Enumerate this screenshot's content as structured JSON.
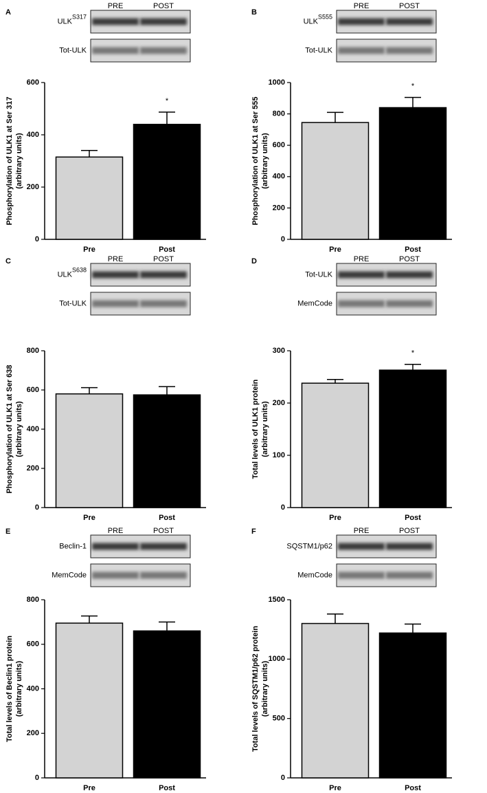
{
  "chart_data": [
    {
      "type": "bar",
      "panel": "A",
      "blot": {
        "lanes": [
          "PRE",
          "POST"
        ],
        "rows": [
          {
            "label": "ULK",
            "superscript": "S317"
          },
          {
            "label": "Tot-ULK"
          }
        ]
      },
      "ylabel": [
        "Phosphorylation of ULK1 at Ser 317",
        "(arbitrary units)"
      ],
      "categories": [
        "Pre",
        "Post"
      ],
      "values": [
        315,
        440
      ],
      "errors": [
        25,
        47
      ],
      "colors": [
        "#d3d3d3",
        "#000000"
      ],
      "ylim": [
        0,
        600
      ],
      "yticks": [
        0,
        200,
        400,
        600
      ],
      "annotations": [
        {
          "text": "*",
          "category": "Post"
        }
      ]
    },
    {
      "type": "bar",
      "panel": "B",
      "blot": {
        "lanes": [
          "PRE",
          "POST"
        ],
        "rows": [
          {
            "label": "ULK",
            "superscript": "S555"
          },
          {
            "label": "Tot-ULK"
          }
        ]
      },
      "ylabel": [
        "Phosphorylation of ULK1 at Ser 555",
        "(arbitrary units)"
      ],
      "categories": [
        "Pre",
        "Post"
      ],
      "values": [
        745,
        840
      ],
      "errors": [
        65,
        65
      ],
      "colors": [
        "#d3d3d3",
        "#000000"
      ],
      "ylim": [
        0,
        1000
      ],
      "yticks": [
        0,
        200,
        400,
        600,
        800,
        1000
      ],
      "annotations": [
        {
          "text": "*",
          "category": "Post"
        }
      ]
    },
    {
      "type": "bar",
      "panel": "C",
      "blot": {
        "lanes": [
          "PRE",
          "POST"
        ],
        "rows": [
          {
            "label": "ULK",
            "superscript": "S638"
          },
          {
            "label": "Tot-ULK"
          }
        ]
      },
      "ylabel": [
        "Phosphorylation of ULK1 at Ser 638",
        "(arbitrary units)"
      ],
      "categories": [
        "Pre",
        "Post"
      ],
      "values": [
        580,
        575
      ],
      "errors": [
        32,
        42
      ],
      "colors": [
        "#d3d3d3",
        "#000000"
      ],
      "ylim": [
        0,
        800
      ],
      "yticks": [
        0,
        200,
        400,
        600,
        800
      ]
    },
    {
      "type": "bar",
      "panel": "D",
      "blot": {
        "lanes": [
          "PRE",
          "POST"
        ],
        "rows": [
          {
            "label": "Tot-ULK"
          },
          {
            "label": "MemCode"
          }
        ]
      },
      "ylabel": [
        "Total levels of ULK1 protein",
        "(arbitrary units)"
      ],
      "categories": [
        "Pre",
        "Post"
      ],
      "values": [
        238,
        263
      ],
      "errors": [
        7,
        11
      ],
      "colors": [
        "#d3d3d3",
        "#000000"
      ],
      "ylim": [
        0,
        300
      ],
      "yticks": [
        0,
        100,
        200,
        300
      ],
      "annotations": [
        {
          "text": "*",
          "category": "Post"
        }
      ]
    },
    {
      "type": "bar",
      "panel": "E",
      "blot": {
        "lanes": [
          "PRE",
          "POST"
        ],
        "rows": [
          {
            "label": "Beclin-1"
          },
          {
            "label": "MemCode"
          }
        ]
      },
      "ylabel": [
        "Total levels of Beclin1 protein",
        "(arbitrary units)"
      ],
      "categories": [
        "Pre",
        "Post"
      ],
      "values": [
        695,
        660
      ],
      "errors": [
        32,
        40
      ],
      "colors": [
        "#d3d3d3",
        "#000000"
      ],
      "ylim": [
        0,
        800
      ],
      "yticks": [
        0,
        200,
        400,
        600,
        800
      ]
    },
    {
      "type": "bar",
      "panel": "F",
      "blot": {
        "lanes": [
          "PRE",
          "POST"
        ],
        "rows": [
          {
            "label": "SQSTM1/p62"
          },
          {
            "label": "MemCode"
          }
        ]
      },
      "ylabel": [
        "Total levels of SQSTM1/p62 protein",
        "(arbitrary units)"
      ],
      "categories": [
        "Pre",
        "Post"
      ],
      "values": [
        1300,
        1220
      ],
      "errors": [
        80,
        75
      ],
      "colors": [
        "#d3d3d3",
        "#000000"
      ],
      "ylim": [
        0,
        1500
      ],
      "yticks": [
        0,
        500,
        1000,
        1500
      ]
    }
  ]
}
